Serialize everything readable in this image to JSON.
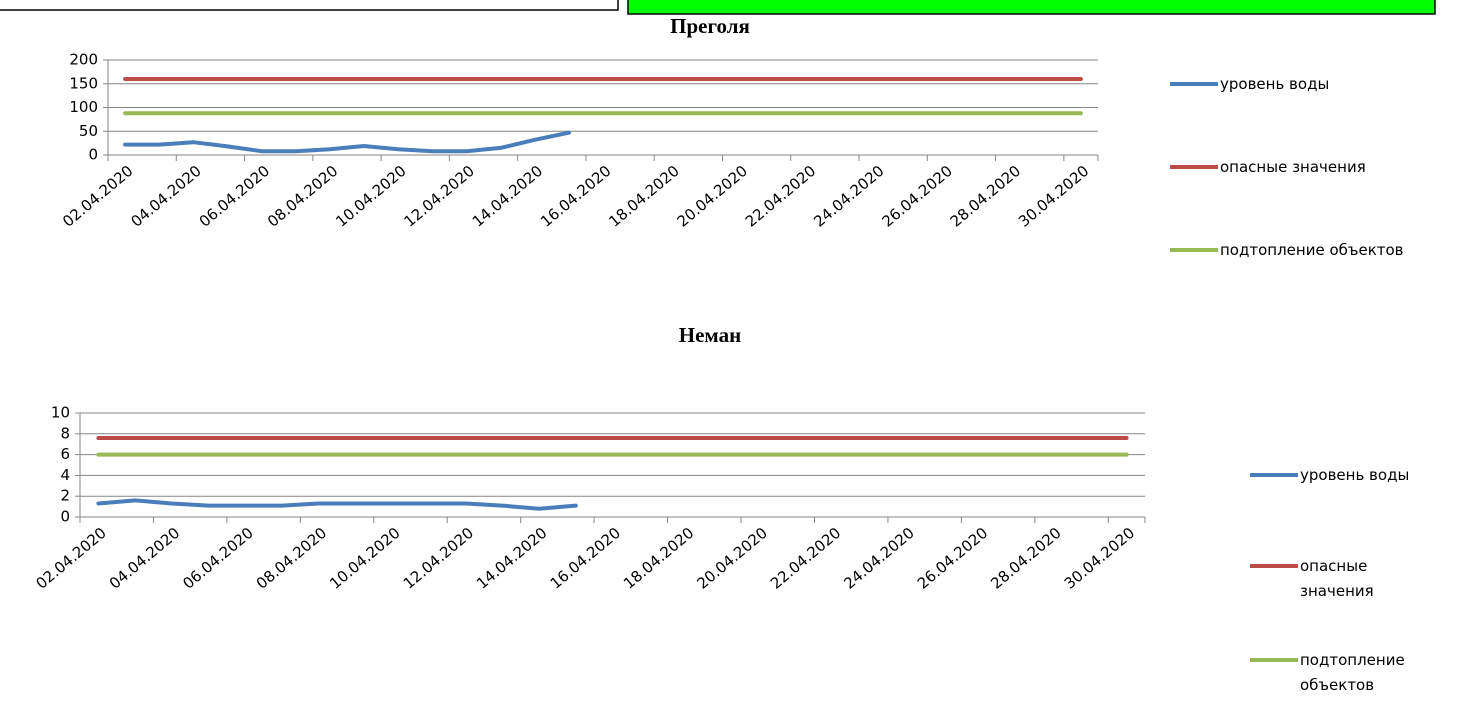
{
  "chart_data": [
    {
      "type": "line",
      "title": "Преголя",
      "categories": [
        "02.04.2020",
        null,
        "04.04.2020",
        null,
        "06.04.2020",
        null,
        "08.04.2020",
        null,
        "10.04.2020",
        null,
        "12.04.2020",
        null,
        "14.04.2020",
        null,
        "16.04.2020",
        null,
        "18.04.2020",
        null,
        "20.04.2020",
        null,
        "22.04.2020",
        null,
        "24.04.2020",
        null,
        "26.04.2020",
        null,
        "28.04.2020",
        null,
        "30.04.2020"
      ],
      "series": [
        {
          "name": "уровень воды",
          "color": "#4a7ebb",
          "values": [
            22,
            22,
            27,
            18,
            8,
            8,
            12,
            19,
            12,
            8,
            8,
            15,
            32,
            47,
            null,
            null,
            null,
            null,
            null,
            null,
            null,
            null,
            null,
            null,
            null,
            null,
            null,
            null,
            null
          ]
        },
        {
          "name": "опасные значения",
          "color": "#be4b48",
          "values": [
            160,
            160,
            160,
            160,
            160,
            160,
            160,
            160,
            160,
            160,
            160,
            160,
            160,
            160,
            160,
            160,
            160,
            160,
            160,
            160,
            160,
            160,
            160,
            160,
            160,
            160,
            160,
            160,
            160
          ]
        },
        {
          "name": "подтопление объектов",
          "color": "#98b954",
          "values": [
            88,
            88,
            88,
            88,
            88,
            88,
            88,
            88,
            88,
            88,
            88,
            88,
            88,
            88,
            88,
            88,
            88,
            88,
            88,
            88,
            88,
            88,
            88,
            88,
            88,
            88,
            88,
            88,
            88
          ]
        }
      ],
      "ylim": [
        0,
        200
      ],
      "yticks": [
        0,
        50,
        100,
        150,
        200
      ],
      "grid": true,
      "legend": "right"
    },
    {
      "type": "line",
      "title": "Неман",
      "categories": [
        "02.04.2020",
        null,
        "04.04.2020",
        null,
        "06.04.2020",
        null,
        "08.04.2020",
        null,
        "10.04.2020",
        null,
        "12.04.2020",
        null,
        "14.04.2020",
        null,
        "16.04.2020",
        null,
        "18.04.2020",
        null,
        "20.04.2020",
        null,
        "22.04.2020",
        null,
        "24.04.2020",
        null,
        "26.04.2020",
        null,
        "28.04.2020",
        null,
        "30.04.2020"
      ],
      "series": [
        {
          "name": "уровень воды",
          "color": "#4a7ebb",
          "values": [
            1.3,
            1.6,
            1.3,
            1.1,
            1.1,
            1.1,
            1.3,
            1.3,
            1.3,
            1.3,
            1.3,
            1.1,
            0.8,
            1.1,
            null,
            null,
            null,
            null,
            null,
            null,
            null,
            null,
            null,
            null,
            null,
            null,
            null,
            null,
            null
          ]
        },
        {
          "name": "опасные значения",
          "color": "#be4b48",
          "values": [
            7.6,
            7.6,
            7.6,
            7.6,
            7.6,
            7.6,
            7.6,
            7.6,
            7.6,
            7.6,
            7.6,
            7.6,
            7.6,
            7.6,
            7.6,
            7.6,
            7.6,
            7.6,
            7.6,
            7.6,
            7.6,
            7.6,
            7.6,
            7.6,
            7.6,
            7.6,
            7.6,
            7.6,
            7.6
          ]
        },
        {
          "name": "подтопление объектов",
          "color": "#98b954",
          "values": [
            6,
            6,
            6,
            6,
            6,
            6,
            6,
            6,
            6,
            6,
            6,
            6,
            6,
            6,
            6,
            6,
            6,
            6,
            6,
            6,
            6,
            6,
            6,
            6,
            6,
            6,
            6,
            6,
            6
          ]
        }
      ],
      "ylim": [
        0,
        10
      ],
      "yticks": [
        0,
        2,
        4,
        6,
        8,
        10
      ],
      "grid": true,
      "legend": "right"
    }
  ]
}
